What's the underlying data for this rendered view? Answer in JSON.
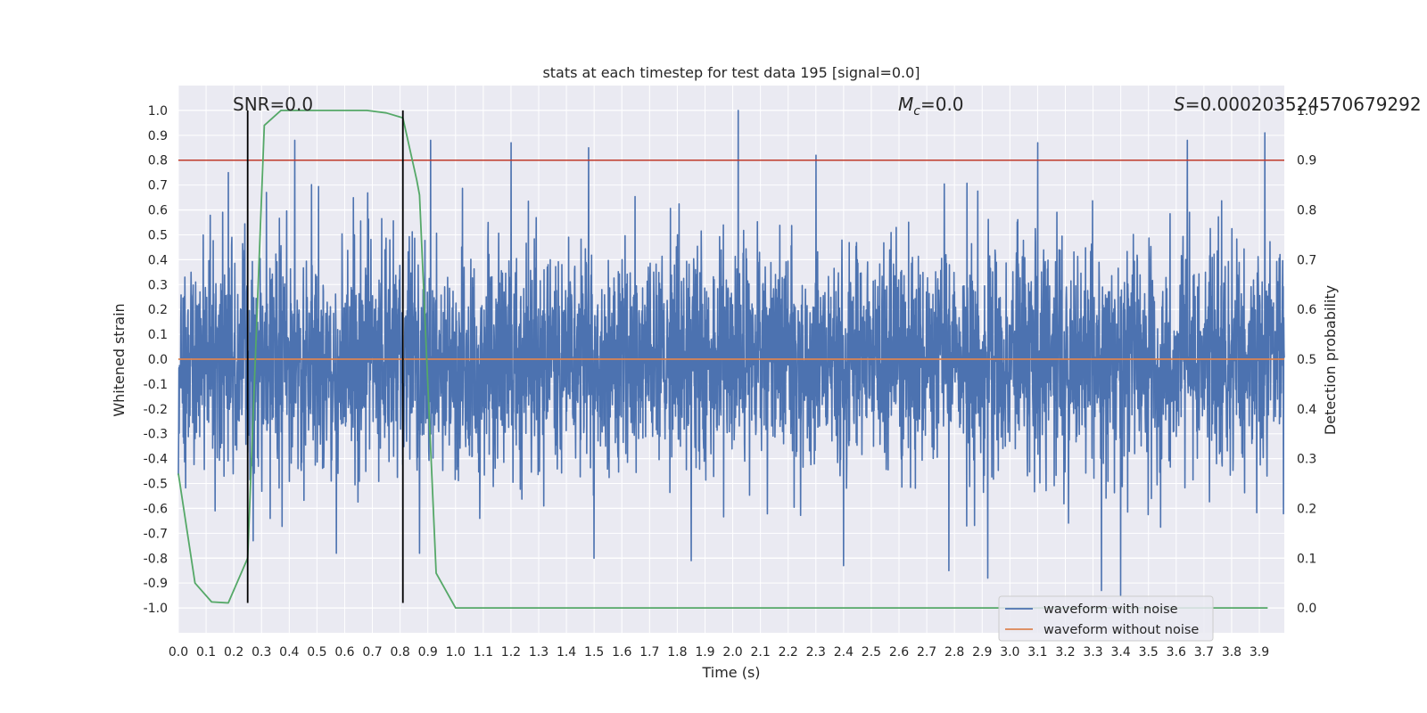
{
  "chart_data": {
    "type": "line",
    "title": "stats at each timestep for test data 195 [signal=0.0]",
    "xlabel": "Time (s)",
    "ylabel": "Whitened strain",
    "y2label": "Detection probability",
    "xlim": [
      0.0,
      3.99
    ],
    "ylim": [
      -1.1,
      1.1
    ],
    "y2lim": [
      -0.05,
      1.05
    ],
    "x_ticks": [
      0.0,
      0.1,
      0.2,
      0.3,
      0.4,
      0.5,
      0.6,
      0.7,
      0.8,
      0.9,
      1.0,
      1.1,
      1.2,
      1.3,
      1.4,
      1.5,
      1.6,
      1.7,
      1.8,
      1.9,
      2.0,
      2.1,
      2.2,
      2.3,
      2.4,
      2.5,
      2.6,
      2.7,
      2.8,
      2.9,
      3.0,
      3.1,
      3.2,
      3.3,
      3.4,
      3.5,
      3.6,
      3.7,
      3.8,
      3.9
    ],
    "x_tick_labels": [
      "0.0",
      "0.1",
      "0.2",
      "0.3",
      "0.4",
      "0.5",
      "0.6",
      "0.7",
      "0.8",
      "0.9",
      "1.0",
      "1.1",
      "1.2",
      "1.3",
      "1.4",
      "1.5",
      "1.6",
      "1.7",
      "1.8",
      "1.9",
      "2.0",
      "2.1",
      "2.2",
      "2.3",
      "2.4",
      "2.5",
      "2.6",
      "2.7",
      "2.8",
      "2.9",
      "3.0",
      "3.1",
      "3.2",
      "3.3",
      "3.4",
      "3.5",
      "3.6",
      "3.7",
      "3.8",
      "3.9"
    ],
    "y_ticks": [
      1.0,
      0.9,
      0.8,
      0.7,
      0.6,
      0.5,
      0.4,
      0.3,
      0.2,
      0.1,
      0.0,
      -0.1,
      -0.2,
      -0.3,
      -0.4,
      -0.5,
      -0.6,
      -0.7,
      -0.8,
      -0.9,
      -1.0
    ],
    "y_tick_labels": [
      "1.0",
      "0.9",
      "0.8",
      "0.7",
      "0.6",
      "0.5",
      "0.4",
      "0.3",
      "0.2",
      "0.1",
      "0.0",
      "-0.1",
      "-0.2",
      "-0.3",
      "-0.4",
      "-0.5",
      "-0.6",
      "-0.7",
      "-0.8",
      "-0.9",
      "-1.0"
    ],
    "y2_ticks": [
      1.0,
      0.9,
      0.8,
      0.7,
      0.6,
      0.5,
      0.4,
      0.3,
      0.2,
      0.1,
      0.0
    ],
    "y2_tick_labels": [
      "1.0",
      "0.9",
      "0.8",
      "0.7",
      "0.6",
      "0.5",
      "0.4",
      "0.3",
      "0.2",
      "0.1",
      "0.0"
    ],
    "grid": true,
    "annotations": [
      {
        "id": "snr",
        "text": "SNR=0.0",
        "x": 0.2,
        "y": 1.05
      },
      {
        "id": "mc",
        "text": "M_c=0.0",
        "display_base": "M",
        "display_sub": "c",
        "display_rest": "=0.0",
        "x": 2.6,
        "y": 1.05
      },
      {
        "id": "s",
        "text": "S=0.000203524570679292",
        "display_base": "S",
        "display_rest": "=0.000203524570679292",
        "x": 3.6,
        "y": 1.05
      }
    ],
    "threshold": {
      "axis": "y2",
      "value": 0.9,
      "color": "#c0392b"
    },
    "markers_vertical": [
      {
        "x": 0.25,
        "ymin": -0.98,
        "ymax": 1.0,
        "color": "#000000"
      },
      {
        "x": 0.81,
        "ymin": -0.98,
        "ymax": 1.0,
        "color": "#000000"
      }
    ],
    "series": [
      {
        "name": "waveform with noise",
        "color": "#4c72b0",
        "axis": "y",
        "kind": "noise",
        "t_start": 0.0,
        "t_end": 3.99,
        "n_samples": 4096,
        "typical_amplitude": 0.4,
        "peak_envelope": [
          0.0,
          1.0,
          -0.98,
          0.99
        ],
        "notable_peaks": [
          {
            "x": 0.42,
            "y": 0.88
          },
          {
            "x": 0.91,
            "y": 0.88
          },
          {
            "x": 1.2,
            "y": 0.87
          },
          {
            "x": 1.48,
            "y": 0.85
          },
          {
            "x": 2.02,
            "y": 1.0
          },
          {
            "x": 2.3,
            "y": 0.82
          },
          {
            "x": 3.1,
            "y": 0.87
          },
          {
            "x": 3.64,
            "y": 0.88
          },
          {
            "x": 3.92,
            "y": 0.91
          },
          {
            "x": 0.18,
            "y": 0.75
          },
          {
            "x": 0.27,
            "y": -0.73
          },
          {
            "x": 0.57,
            "y": -0.78
          },
          {
            "x": 0.87,
            "y": -0.78
          },
          {
            "x": 1.5,
            "y": -0.8
          },
          {
            "x": 1.85,
            "y": -0.81
          },
          {
            "x": 2.4,
            "y": -0.83
          },
          {
            "x": 2.78,
            "y": -0.85
          },
          {
            "x": 2.92,
            "y": -0.88
          },
          {
            "x": 3.33,
            "y": -0.93
          },
          {
            "x": 3.4,
            "y": -0.95
          }
        ]
      },
      {
        "name": "waveform without noise",
        "color": "#dd8452",
        "axis": "y",
        "x": [
          0.0,
          3.99
        ],
        "y": [
          0.0,
          0.0
        ]
      },
      {
        "name": "detection probability",
        "color": "#55a868",
        "axis": "y2",
        "legend": false,
        "x": [
          0.0,
          0.06,
          0.12,
          0.18,
          0.25,
          0.31,
          0.37,
          0.43,
          0.5,
          0.56,
          0.62,
          0.68,
          0.75,
          0.81,
          0.86,
          0.87,
          0.93,
          1.0,
          1.06,
          1.2,
          1.5,
          2.0,
          2.5,
          3.0,
          3.5,
          3.93
        ],
        "y": [
          0.27,
          0.05,
          0.012,
          0.01,
          0.1,
          0.97,
          1.0,
          1.0,
          1.0,
          1.0,
          1.0,
          1.0,
          0.995,
          0.985,
          0.86,
          0.83,
          0.07,
          0.0,
          0.0,
          0.0,
          0.0,
          0.0,
          0.0,
          0.0,
          0.0,
          0.0
        ]
      }
    ],
    "legend": {
      "position": "lower-right",
      "entries": [
        "waveform with noise",
        "waveform without noise"
      ]
    },
    "colors": {
      "background": "#eaeaf2",
      "grid": "#ffffff",
      "noise": "#4c72b0",
      "clean": "#dd8452",
      "prob": "#55a868",
      "threshold": "#c0392b",
      "marker": "#000000"
    }
  }
}
